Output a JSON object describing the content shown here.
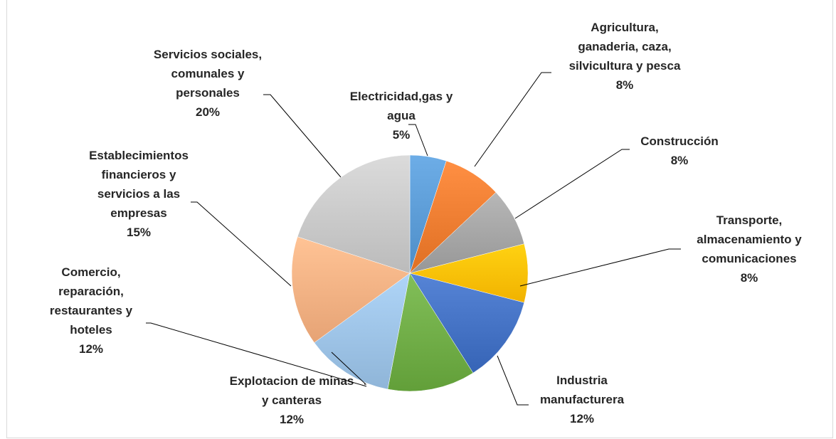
{
  "chart_data": {
    "type": "pie",
    "start_angle_deg": 0,
    "direction": "clockwise",
    "legend": "none",
    "slices": [
      {
        "label": "Electricidad,gas y agua",
        "label_lines": [
          "Electricidad,gas y",
          "agua"
        ],
        "value": 5,
        "display": "5%",
        "color": "#5b9bd5"
      },
      {
        "label": "Agricultura, ganaderia, caza, silvicultura y pesca",
        "label_lines": [
          "Agricultura,",
          "ganaderia, caza,",
          "silvicultura y pesca"
        ],
        "value": 8,
        "display": "8%",
        "color": "#ed7d31"
      },
      {
        "label": "Construcción",
        "label_lines": [
          "Construcción"
        ],
        "value": 8,
        "display": "8%",
        "color": "#a5a5a5"
      },
      {
        "label": "Transporte, almacenamiento y comunicaciones",
        "label_lines": [
          "Transporte,",
          "almacenamiento y",
          "comunicaciones"
        ],
        "value": 8,
        "display": "8%",
        "color": "#ffc000"
      },
      {
        "label": "Industria manufacturera",
        "label_lines": [
          "Industria",
          "manufacturera"
        ],
        "value": 12,
        "display": "12%",
        "color": "#4472c4"
      },
      {
        "label": "Explotacion de minas y canteras",
        "label_lines": [
          "Explotacion de minas",
          "y canteras"
        ],
        "value": 12,
        "display": "12%",
        "color": "#70ad47"
      },
      {
        "label": "Comercio, reparación, restaurantes y hoteles",
        "label_lines": [
          "Comercio,",
          "reparación,",
          "restaurantes y",
          "hoteles"
        ],
        "value": 12,
        "display": "12%",
        "color": "#9dc3e6"
      },
      {
        "label": "Establecimientos financieros y servicios a las empresas",
        "label_lines": [
          "Establecimientos",
          "financieros y",
          "servicios a las",
          "empresas"
        ],
        "value": 15,
        "display": "15%",
        "color": "#f4b183"
      },
      {
        "label": "Servicios sociales, comunales y personales",
        "label_lines": [
          "Servicios sociales,",
          "comunales y",
          "personales"
        ],
        "value": 20,
        "display": "20%",
        "color": "#c9c9c9"
      }
    ]
  }
}
